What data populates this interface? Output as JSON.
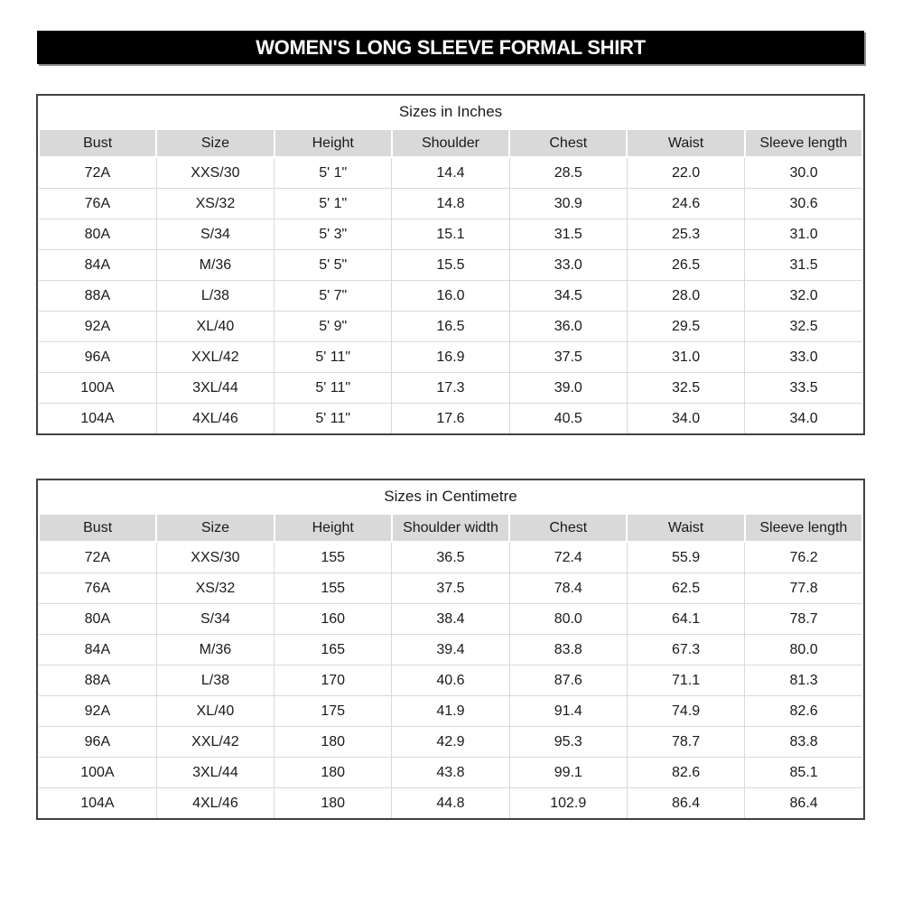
{
  "banner": {
    "title": "WOMEN'S LONG SLEEVE FORMAL SHIRT"
  },
  "tables": [
    {
      "title": "Sizes in Inches",
      "headers": [
        "Bust",
        "Size",
        "Height",
        "Shoulder",
        "Chest",
        "Waist",
        "Sleeve length"
      ],
      "rows": [
        [
          "72A",
          "XXS/30",
          "5' 1\"",
          "14.4",
          "28.5",
          "22.0",
          "30.0"
        ],
        [
          "76A",
          "XS/32",
          "5' 1\"",
          "14.8",
          "30.9",
          "24.6",
          "30.6"
        ],
        [
          "80A",
          "S/34",
          "5' 3\"",
          "15.1",
          "31.5",
          "25.3",
          "31.0"
        ],
        [
          "84A",
          "M/36",
          "5' 5\"",
          "15.5",
          "33.0",
          "26.5",
          "31.5"
        ],
        [
          "88A",
          "L/38",
          "5' 7\"",
          "16.0",
          "34.5",
          "28.0",
          "32.0"
        ],
        [
          "92A",
          "XL/40",
          "5' 9\"",
          "16.5",
          "36.0",
          "29.5",
          "32.5"
        ],
        [
          "96A",
          "XXL/42",
          "5' 11\"",
          "16.9",
          "37.5",
          "31.0",
          "33.0"
        ],
        [
          "100A",
          "3XL/44",
          "5' 11\"",
          "17.3",
          "39.0",
          "32.5",
          "33.5"
        ],
        [
          "104A",
          "4XL/46",
          "5' 11\"",
          "17.6",
          "40.5",
          "34.0",
          "34.0"
        ]
      ]
    },
    {
      "title": "Sizes in Centimetre",
      "headers": [
        "Bust",
        "Size",
        "Height",
        "Shoulder width",
        "Chest",
        "Waist",
        "Sleeve length"
      ],
      "rows": [
        [
          "72A",
          "XXS/30",
          "155",
          "36.5",
          "72.4",
          "55.9",
          "76.2"
        ],
        [
          "76A",
          "XS/32",
          "155",
          "37.5",
          "78.4",
          "62.5",
          "77.8"
        ],
        [
          "80A",
          "S/34",
          "160",
          "38.4",
          "80.0",
          "64.1",
          "78.7"
        ],
        [
          "84A",
          "M/36",
          "165",
          "39.4",
          "83.8",
          "67.3",
          "80.0"
        ],
        [
          "88A",
          "L/38",
          "170",
          "40.6",
          "87.6",
          "71.1",
          "81.3"
        ],
        [
          "92A",
          "XL/40",
          "175",
          "41.9",
          "91.4",
          "74.9",
          "82.6"
        ],
        [
          "96A",
          "XXL/42",
          "180",
          "42.9",
          "95.3",
          "78.7",
          "83.8"
        ],
        [
          "100A",
          "3XL/44",
          "180",
          "43.8",
          "99.1",
          "82.6",
          "85.1"
        ],
        [
          "104A",
          "4XL/46",
          "180",
          "44.8",
          "102.9",
          "86.4",
          "86.4"
        ]
      ]
    }
  ],
  "colors": {
    "banner_bg": "#000000",
    "banner_text": "#ffffff",
    "banner_shadow": "#8c8c8c",
    "header_row_bg": "#d9d9d9",
    "grid_line": "#d9d9d9",
    "table_border": "#424242",
    "text": "#1a1a1a",
    "page_bg": "#ffffff"
  }
}
